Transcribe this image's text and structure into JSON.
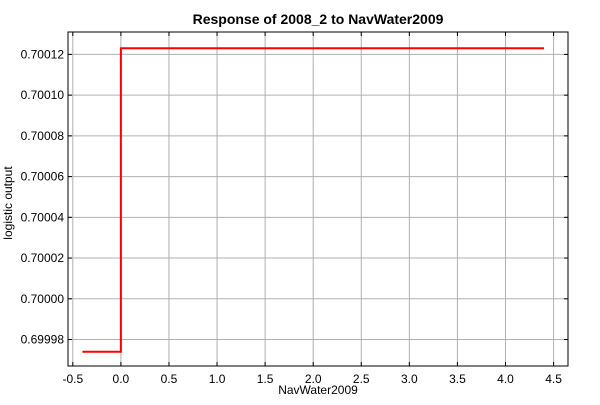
{
  "chart_data": {
    "type": "line",
    "title": "Response of 2008_2 to NavWater2009",
    "xlabel": "NavWater2009",
    "ylabel": "logistic output",
    "xlim": [
      -0.55,
      4.65
    ],
    "ylim": [
      0.699967,
      0.700131
    ],
    "xticks": [
      -0.5,
      0.0,
      0.5,
      1.0,
      1.5,
      2.0,
      2.5,
      3.0,
      3.5,
      4.0,
      4.5
    ],
    "xtick_labels": [
      "-0.5",
      "0.0",
      "0.5",
      "1.0",
      "1.5",
      "2.0",
      "2.5",
      "3.0",
      "3.5",
      "4.0",
      "4.5"
    ],
    "yticks": [
      0.69998,
      0.7,
      0.70002,
      0.70004,
      0.70006,
      0.70008,
      0.7001,
      0.70012
    ],
    "ytick_labels": [
      "0.69998",
      "0.70000",
      "0.70002",
      "0.70004",
      "0.70006",
      "0.70008",
      "0.70010",
      "0.70012"
    ],
    "grid": true,
    "series": [
      {
        "color": "#ff0000",
        "x": [
          -0.4,
          0.0,
          0.0,
          4.4
        ],
        "y": [
          0.699974,
          0.699974,
          0.700123,
          0.700123
        ]
      }
    ]
  }
}
